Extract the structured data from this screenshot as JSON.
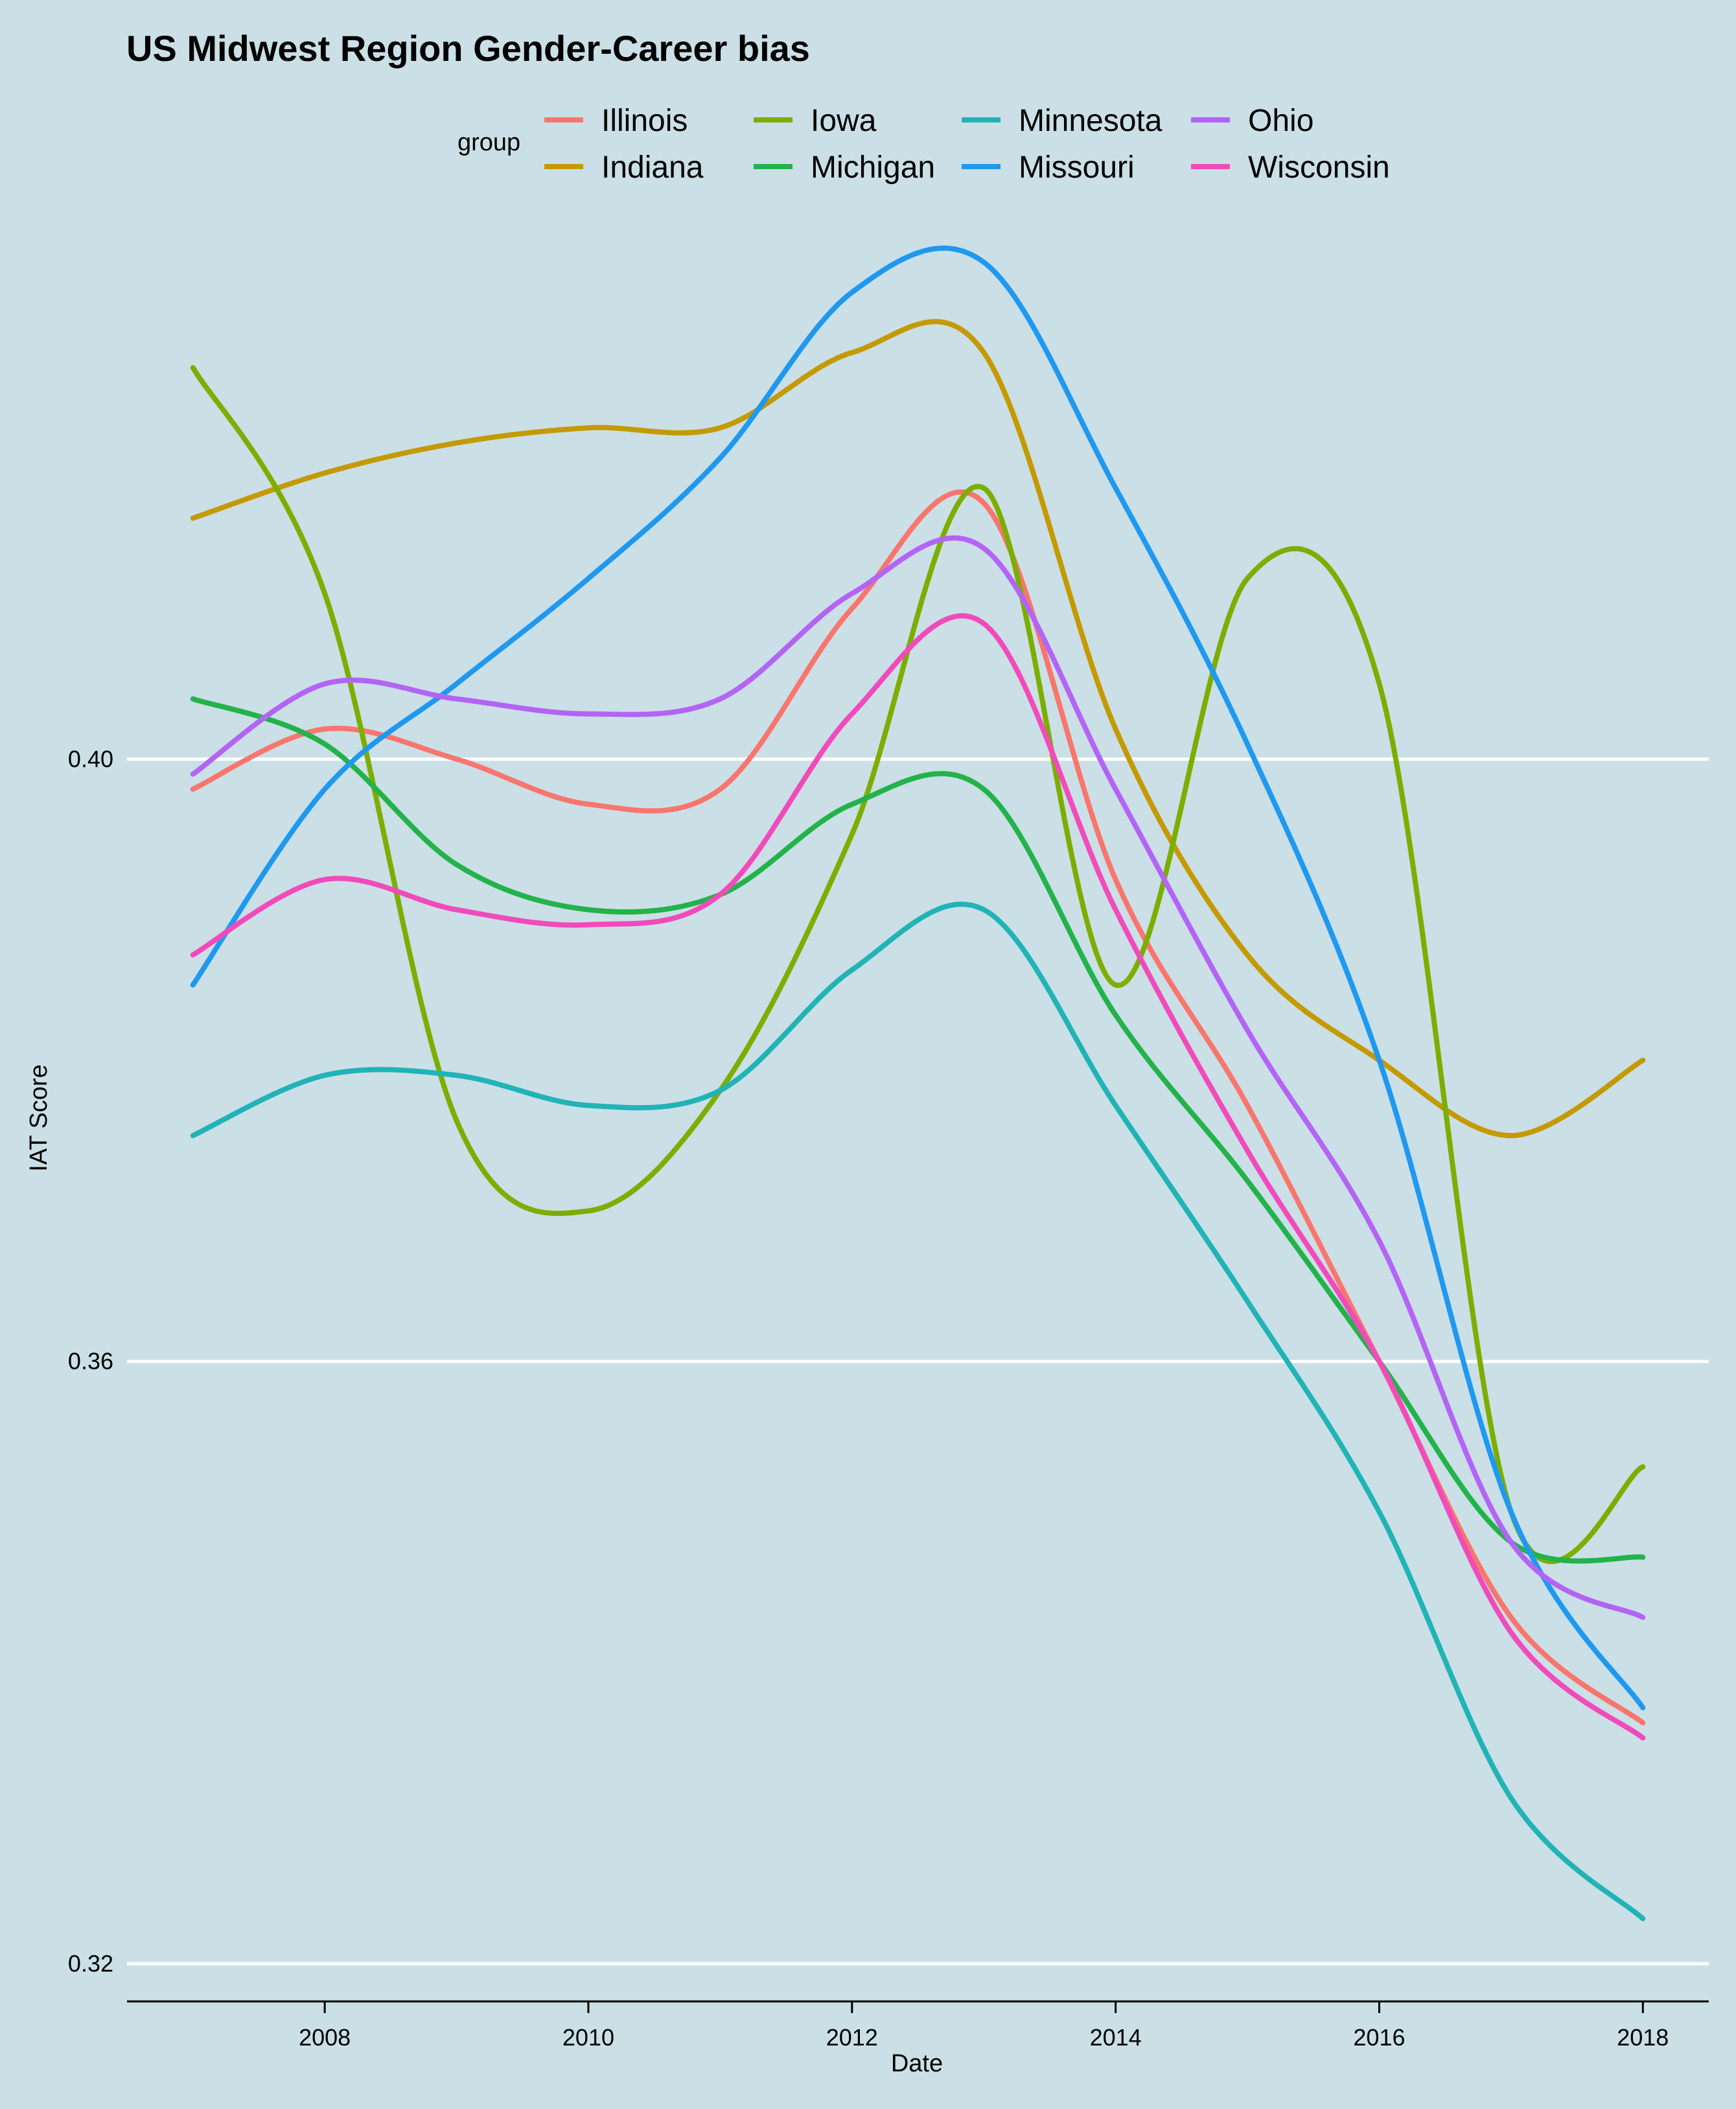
{
  "chart_data": {
    "type": "line",
    "title": "US Midwest Region Gender-Career bias",
    "xlabel": "Date",
    "ylabel": "IAT Score",
    "xlim": [
      2006.5,
      2018.5
    ],
    "ylim": [
      0.3175,
      0.4375
    ],
    "x_ticks": [
      "2008",
      "2010",
      "2012",
      "2014",
      "2016",
      "2018"
    ],
    "y_ticks": [
      "0.32",
      "0.36",
      "0.40"
    ],
    "grid": "horizontal major lines at y ticks",
    "legend": {
      "title": "group",
      "placement": "top",
      "entries": [
        "Illinois",
        "Indiana",
        "Iowa",
        "Michigan",
        "Minnesota",
        "Missouri",
        "Ohio",
        "Wisconsin"
      ]
    },
    "x": [
      2007,
      2008,
      2009,
      2010,
      2011,
      2012,
      2013,
      2014,
      2015,
      2016,
      2017,
      2018
    ],
    "series": [
      {
        "name": "Illinois",
        "color": "#f8766d",
        "values": [
          0.398,
          0.402,
          0.4,
          0.397,
          0.398,
          0.41,
          0.417,
          0.392,
          0.377,
          0.36,
          0.343,
          0.336
        ]
      },
      {
        "name": "Indiana",
        "color": "#c49a00",
        "values": [
          0.416,
          0.419,
          0.421,
          0.422,
          0.422,
          0.427,
          0.427,
          0.402,
          0.387,
          0.38,
          0.375,
          0.38
        ]
      },
      {
        "name": "Iowa",
        "color": "#7cae00",
        "values": [
          0.426,
          0.411,
          0.376,
          0.37,
          0.378,
          0.395,
          0.418,
          0.385,
          0.412,
          0.405,
          0.35,
          0.353
        ]
      },
      {
        "name": "Michigan",
        "color": "#22b34b",
        "values": [
          0.404,
          0.401,
          0.393,
          0.39,
          0.391,
          0.397,
          0.398,
          0.383,
          0.372,
          0.36,
          0.348,
          0.347
        ]
      },
      {
        "name": "Minnesota",
        "color": "#20b4b6",
        "values": [
          0.375,
          0.379,
          0.379,
          0.377,
          0.378,
          0.386,
          0.39,
          0.377,
          0.364,
          0.35,
          0.331,
          0.323
        ]
      },
      {
        "name": "Missouri",
        "color": "#1f99f0",
        "values": [
          0.385,
          0.398,
          0.405,
          0.412,
          0.42,
          0.431,
          0.433,
          0.418,
          0.401,
          0.38,
          0.35,
          0.337
        ]
      },
      {
        "name": "Ohio",
        "color": "#b364f5",
        "values": [
          0.399,
          0.405,
          0.404,
          0.403,
          0.404,
          0.411,
          0.414,
          0.398,
          0.382,
          0.368,
          0.348,
          0.343
        ]
      },
      {
        "name": "Wisconsin",
        "color": "#f14bbb",
        "values": [
          0.387,
          0.392,
          0.39,
          0.389,
          0.391,
          0.403,
          0.409,
          0.39,
          0.374,
          0.36,
          0.342,
          0.335
        ]
      }
    ]
  }
}
